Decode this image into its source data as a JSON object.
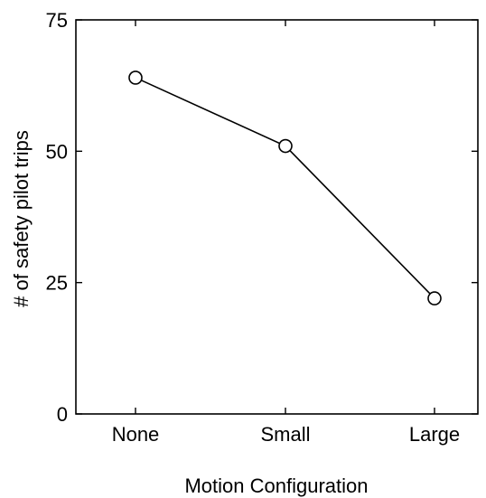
{
  "chart_data": {
    "type": "line",
    "categories": [
      "None",
      "Small",
      "Large"
    ],
    "series": [
      {
        "values": [
          64,
          51,
          22
        ],
        "marker": "open-circle",
        "color": "#000000"
      }
    ],
    "ylabel": "# of safety pilot trips",
    "xlabel": "Motion Configuration",
    "ylim": [
      0,
      75
    ],
    "yticks": [
      0,
      25,
      50,
      75
    ],
    "grid": false
  }
}
